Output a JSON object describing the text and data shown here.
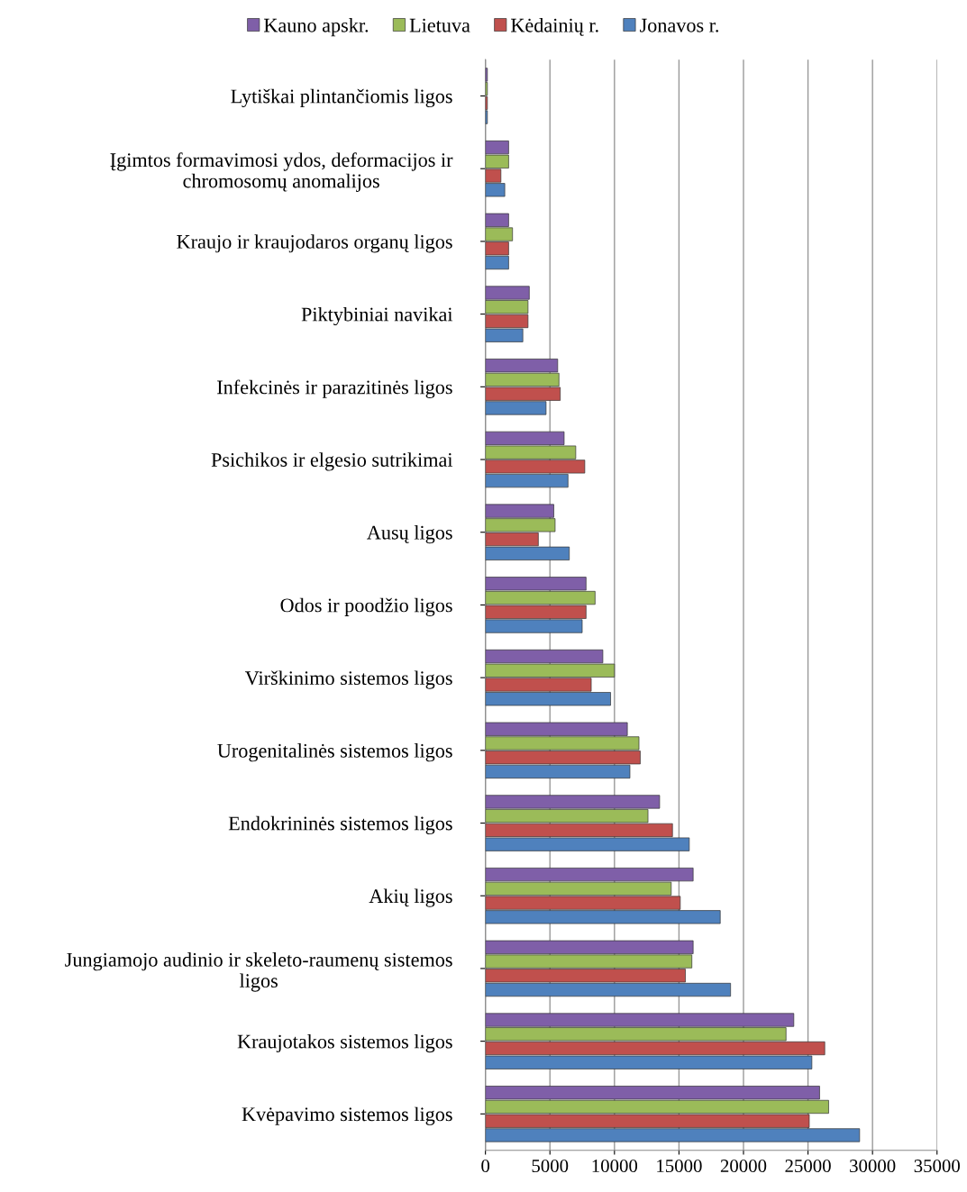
{
  "chart_data": {
    "type": "bar",
    "orientation": "horizontal",
    "categories": [
      "Lytiškai plintančiomis ligos",
      "Įgimtos formavimosi ydos, deformacijos ir\nchromosomų anomalijos",
      "Kraujo ir kraujodaros organų ligos",
      "Piktybiniai navikai",
      "Infekcinės ir parazitinės ligos",
      "Psichikos ir elgesio sutrikimai",
      "Ausų ligos",
      "Odos ir poodžio ligos",
      "Virškinimo sistemos ligos",
      "Urogenitalinės sistemos ligos",
      "Endokrininės sistemos ligos",
      "Akių ligos",
      "Jungiamojo audinio ir skeleto-raumenų sistemos\nligos",
      "Kraujotakos sistemos ligos",
      "Kvėpavimo sistemos ligos"
    ],
    "series": [
      {
        "name": "Kauno apskr.",
        "color": "#7f5fa8",
        "values": [
          150,
          1800,
          1800,
          3400,
          5600,
          6100,
          5300,
          7800,
          9100,
          11000,
          13500,
          16100,
          16100,
          23900,
          25900
        ]
      },
      {
        "name": "Lietuva",
        "color": "#9bbb59",
        "values": [
          150,
          1800,
          2100,
          3300,
          5700,
          7000,
          5400,
          8500,
          10000,
          11900,
          12600,
          14400,
          16000,
          23300,
          26600
        ]
      },
      {
        "name": "Kėdainių r.",
        "color": "#c0504d",
        "values": [
          150,
          1200,
          1800,
          3300,
          5800,
          7700,
          4100,
          7800,
          8200,
          12000,
          14500,
          15100,
          15500,
          26300,
          25100
        ]
      },
      {
        "name": "Jonavos r.",
        "color": "#4f81bd",
        "values": [
          150,
          1500,
          1800,
          2900,
          4700,
          6400,
          6500,
          7500,
          9700,
          11200,
          15800,
          18200,
          19000,
          25300,
          29000
        ]
      }
    ],
    "xlim": [
      0,
      35000
    ],
    "xticks": [
      0,
      5000,
      10000,
      15000,
      20000,
      25000,
      30000,
      35000
    ],
    "grid": "x",
    "legend": "top"
  }
}
